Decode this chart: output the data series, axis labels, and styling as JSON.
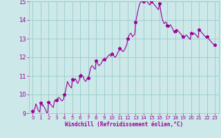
{
  "xlabel": "Windchill (Refroidissement éolien,°C)",
  "bg_color": "#cce8e8",
  "grid_color": "#99cccc",
  "line_color": "#990099",
  "marker_color": "#990099",
  "xlim": [
    -0.5,
    23.5
  ],
  "ylim": [
    9.0,
    15.0
  ],
  "yticks": [
    9,
    10,
    11,
    12,
    13,
    14,
    15
  ],
  "xticks": [
    0,
    1,
    2,
    3,
    4,
    5,
    6,
    7,
    8,
    9,
    10,
    11,
    12,
    13,
    14,
    15,
    16,
    17,
    18,
    19,
    20,
    21,
    22,
    23
  ],
  "x": [
    0,
    0.1,
    0.2,
    0.3,
    0.4,
    0.5,
    0.6,
    0.7,
    0.8,
    0.9,
    1.0,
    1.1,
    1.2,
    1.3,
    1.4,
    1.5,
    1.6,
    1.7,
    1.8,
    1.9,
    2.0,
    2.1,
    2.2,
    2.3,
    2.4,
    2.5,
    2.6,
    2.7,
    2.8,
    2.9,
    3.0,
    3.1,
    3.2,
    3.3,
    3.4,
    3.5,
    3.6,
    3.7,
    3.8,
    3.9,
    4.0,
    4.1,
    4.2,
    4.3,
    4.4,
    4.5,
    4.6,
    4.7,
    4.8,
    4.9,
    5.0,
    5.1,
    5.2,
    5.3,
    5.4,
    5.5,
    5.6,
    5.7,
    5.8,
    5.9,
    6.0,
    6.1,
    6.2,
    6.3,
    6.4,
    6.5,
    6.6,
    6.7,
    6.8,
    6.9,
    7.0,
    7.1,
    7.2,
    7.3,
    7.4,
    7.5,
    7.6,
    7.7,
    7.8,
    7.9,
    8.0,
    8.1,
    8.2,
    8.3,
    8.4,
    8.5,
    8.6,
    8.7,
    8.8,
    8.9,
    9.0,
    9.1,
    9.2,
    9.3,
    9.4,
    9.5,
    9.6,
    9.7,
    9.8,
    9.9,
    10.0,
    10.1,
    10.2,
    10.3,
    10.4,
    10.5,
    10.6,
    10.7,
    10.8,
    10.9,
    11.0,
    11.1,
    11.2,
    11.3,
    11.4,
    11.5,
    11.6,
    11.7,
    11.8,
    11.9,
    12.0,
    12.1,
    12.2,
    12.3,
    12.4,
    12.5,
    12.6,
    12.7,
    12.8,
    12.9,
    13.0,
    13.1,
    13.2,
    13.3,
    13.4,
    13.5,
    13.6,
    13.7,
    13.8,
    13.9,
    14.0,
    14.1,
    14.2,
    14.3,
    14.4,
    14.5,
    14.6,
    14.7,
    14.8,
    14.9,
    15.0,
    15.1,
    15.2,
    15.3,
    15.4,
    15.5,
    15.6,
    15.7,
    15.8,
    15.9,
    16.0,
    16.1,
    16.2,
    16.3,
    16.4,
    16.5,
    16.6,
    16.7,
    16.8,
    16.9,
    17.0,
    17.1,
    17.2,
    17.3,
    17.4,
    17.5,
    17.6,
    17.7,
    17.8,
    17.9,
    18.0,
    18.1,
    18.2,
    18.3,
    18.4,
    18.5,
    18.6,
    18.7,
    18.8,
    18.9,
    19.0,
    19.1,
    19.2,
    19.3,
    19.4,
    19.5,
    19.6,
    19.7,
    19.8,
    19.9,
    20.0,
    20.1,
    20.2,
    20.3,
    20.4,
    20.5,
    20.6,
    20.7,
    20.8,
    20.9,
    21.0,
    21.1,
    21.2,
    21.3,
    21.4,
    21.5,
    21.6,
    21.7,
    21.8,
    21.9,
    22.0,
    22.1,
    22.2,
    22.3,
    22.4,
    22.5,
    22.6,
    22.7,
    22.8,
    22.9,
    23.0
  ],
  "y": [
    9.1,
    9.0,
    9.15,
    9.3,
    9.5,
    9.4,
    9.25,
    9.15,
    9.1,
    9.05,
    9.55,
    9.5,
    9.4,
    9.45,
    9.35,
    9.3,
    9.2,
    9.1,
    9.0,
    9.05,
    9.6,
    9.55,
    9.5,
    9.45,
    9.4,
    9.35,
    9.3,
    9.55,
    9.7,
    9.65,
    9.7,
    9.75,
    9.8,
    9.85,
    9.8,
    9.75,
    9.7,
    9.65,
    9.7,
    9.75,
    10.0,
    10.1,
    10.3,
    10.5,
    10.7,
    10.6,
    10.5,
    10.45,
    10.4,
    10.35,
    10.8,
    10.75,
    10.7,
    10.8,
    10.85,
    10.75,
    10.65,
    10.6,
    10.7,
    10.8,
    11.0,
    11.1,
    11.05,
    11.0,
    10.95,
    10.8,
    10.75,
    10.7,
    10.8,
    10.9,
    10.9,
    11.0,
    11.2,
    11.4,
    11.5,
    11.55,
    11.5,
    11.45,
    11.4,
    11.35,
    11.8,
    11.75,
    11.65,
    11.6,
    11.55,
    11.6,
    11.65,
    11.7,
    11.8,
    11.9,
    11.9,
    11.85,
    11.9,
    11.95,
    12.0,
    12.05,
    12.1,
    12.15,
    12.1,
    12.05,
    12.2,
    12.15,
    12.1,
    12.05,
    12.0,
    12.05,
    12.1,
    12.2,
    12.3,
    12.35,
    12.5,
    12.45,
    12.4,
    12.35,
    12.3,
    12.35,
    12.4,
    12.5,
    12.6,
    12.7,
    13.0,
    13.1,
    13.2,
    13.25,
    13.3,
    13.2,
    13.1,
    13.15,
    13.2,
    13.25,
    13.9,
    14.1,
    14.3,
    14.5,
    14.7,
    14.85,
    14.95,
    15.0,
    15.0,
    14.95,
    15.0,
    15.05,
    15.0,
    15.05,
    15.0,
    14.95,
    14.9,
    14.85,
    14.8,
    14.9,
    15.0,
    14.95,
    14.9,
    14.85,
    14.8,
    14.75,
    14.7,
    14.65,
    14.6,
    14.55,
    14.9,
    14.7,
    14.4,
    14.2,
    14.0,
    13.9,
    13.8,
    13.85,
    13.9,
    13.85,
    13.7,
    13.65,
    13.6,
    13.7,
    13.75,
    13.65,
    13.6,
    13.5,
    13.4,
    13.3,
    13.4,
    13.45,
    13.5,
    13.45,
    13.4,
    13.35,
    13.3,
    13.25,
    13.2,
    13.15,
    13.1,
    13.05,
    13.1,
    13.15,
    13.2,
    13.15,
    13.1,
    13.05,
    13.0,
    12.95,
    13.3,
    13.25,
    13.2,
    13.25,
    13.3,
    13.25,
    13.2,
    13.15,
    13.1,
    13.05,
    13.5,
    13.45,
    13.4,
    13.35,
    13.3,
    13.25,
    13.2,
    13.15,
    13.1,
    13.05,
    13.1,
    13.05,
    13.0,
    12.95,
    12.9,
    12.85,
    12.8,
    12.75,
    12.72,
    12.68,
    12.65
  ],
  "marker_x": [
    0,
    1,
    2,
    3,
    4,
    5,
    6,
    7,
    8,
    9,
    10,
    11,
    12,
    13,
    14,
    15,
    16,
    17,
    18,
    19,
    20,
    21,
    22,
    23
  ],
  "marker_y": [
    9.1,
    9.55,
    9.6,
    9.7,
    10.0,
    10.8,
    11.0,
    10.9,
    11.8,
    11.9,
    12.2,
    12.5,
    13.0,
    13.9,
    15.0,
    15.0,
    14.9,
    13.7,
    13.4,
    13.1,
    13.3,
    13.5,
    13.1,
    12.65
  ]
}
